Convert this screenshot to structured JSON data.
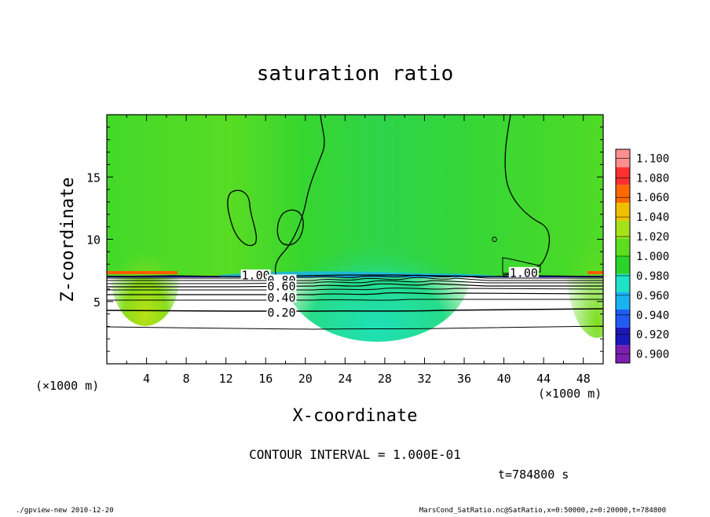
{
  "chart_data": {
    "type": "heatmap",
    "title": "saturation ratio",
    "xlabel": "X-coordinate",
    "ylabel": "Z-coordinate",
    "x_unit": "(×1000 m)",
    "y_unit": "(×1000 m)",
    "xlim": [
      0,
      50
    ],
    "ylim": [
      0,
      20
    ],
    "x_ticks": [
      4,
      8,
      12,
      16,
      20,
      24,
      28,
      32,
      36,
      40,
      44,
      48
    ],
    "y_ticks": [
      5,
      10,
      15
    ],
    "colorbar": {
      "levels": [
        0.9,
        0.92,
        0.94,
        0.96,
        0.98,
        1.0,
        1.02,
        1.04,
        1.06,
        1.08,
        1.1
      ],
      "labels": [
        "0.900",
        "0.920",
        "0.940",
        "0.960",
        "0.980",
        "1.000",
        "1.020",
        "1.040",
        "1.060",
        "1.080",
        "1.100"
      ],
      "colors": [
        "#7a1fb0",
        "#1a18b8",
        "#1e5cf2",
        "#19b3f0",
        "#1fe3c8",
        "#2bd42b",
        "#5cde1e",
        "#a6e218",
        "#f0c000",
        "#ff6a00",
        "#ff3030",
        "#ff8f8f"
      ]
    },
    "contour_labels": [
      {
        "text": "1.00",
        "x": 15,
        "z": 7.1
      },
      {
        "text": "0.80",
        "x": 17.6,
        "z": 6.7
      },
      {
        "text": "0.60",
        "x": 17.6,
        "z": 6.2
      },
      {
        "text": "0.40",
        "x": 17.6,
        "z": 5.3
      },
      {
        "text": "0.20",
        "x": 17.6,
        "z": 4.1
      },
      {
        "text": "1.00",
        "x": 42,
        "z": 7.3
      }
    ],
    "contour_interval_text": "CONTOUR INTERVAL = 1.000E-01",
    "time_text": "t=784800 s"
  },
  "footer": {
    "left": "./gpview-new  2010-12-20",
    "right": "MarsCond_SatRatio.nc@SatRatio,x=0:50000,z=0:20000,t=784800"
  }
}
